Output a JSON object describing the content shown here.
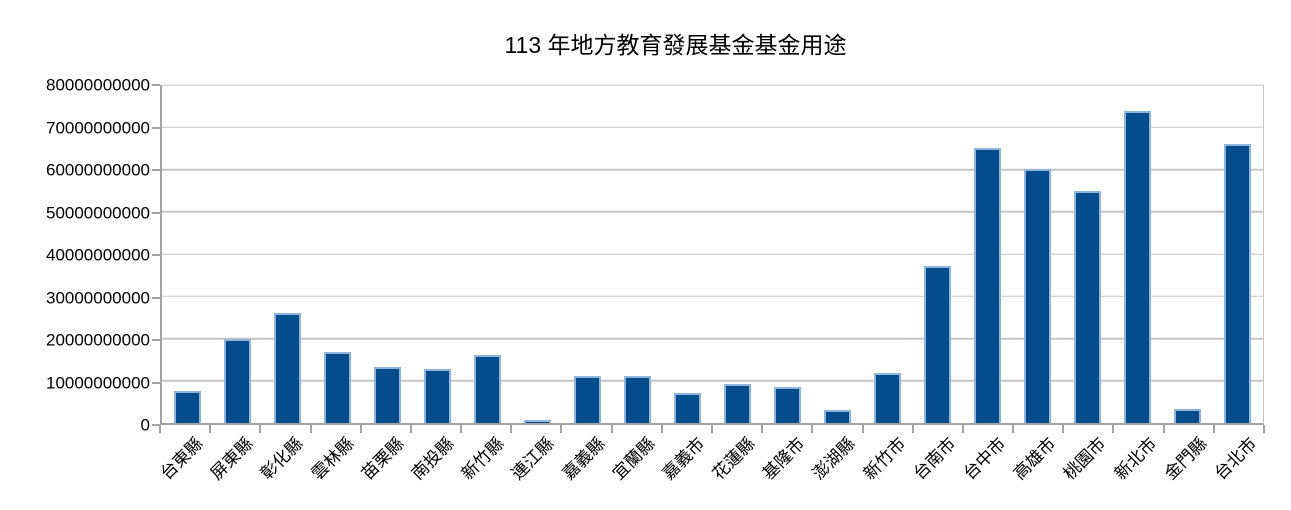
{
  "colors": {
    "bar_fill": "#054c8c",
    "bar_edge": "#8fb5db",
    "gridline": "#c6c6c6",
    "axis": "#a3a3a3",
    "text": "#000000",
    "background": "#ffffff"
  },
  "chart_data": {
    "type": "bar",
    "title": "113 年地方教育發展基金基金用途",
    "categories": [
      "台東縣",
      "屏東縣",
      "彰化縣",
      "雲林縣",
      "苗栗縣",
      "南投縣",
      "新竹縣",
      "連江縣",
      "嘉義縣",
      "宜蘭縣",
      "嘉義市",
      "花蓮縣",
      "基隆市",
      "澎湖縣",
      "新竹市",
      "台南市",
      "台中市",
      "高雄市",
      "桃園市",
      "新北市",
      "金門縣",
      "台北市"
    ],
    "values": [
      7500000000,
      20000000000,
      26000000000,
      16700000000,
      13200000000,
      12900000000,
      16000000000,
      700000000,
      11200000000,
      11100000000,
      7100000000,
      9200000000,
      8500000000,
      3100000000,
      11900000000,
      37200000000,
      65200000000,
      60100000000,
      54800000000,
      73900000000,
      3400000000,
      66000000000
    ],
    "xlabel": "",
    "ylabel": "",
    "ylim": [
      0,
      80000000000
    ],
    "yticks": [
      0,
      10000000000,
      20000000000,
      30000000000,
      40000000000,
      50000000000,
      60000000000,
      70000000000,
      80000000000
    ],
    "yticklabels": [
      "0",
      "10000000000",
      "20000000000",
      "30000000000",
      "40000000000",
      "50000000000",
      "60000000000",
      "70000000000",
      "80000000000"
    ],
    "grid": "horizontal-only",
    "legend": "none",
    "xlabel_rotation_deg": 45,
    "bar_color": "#054c8c"
  }
}
